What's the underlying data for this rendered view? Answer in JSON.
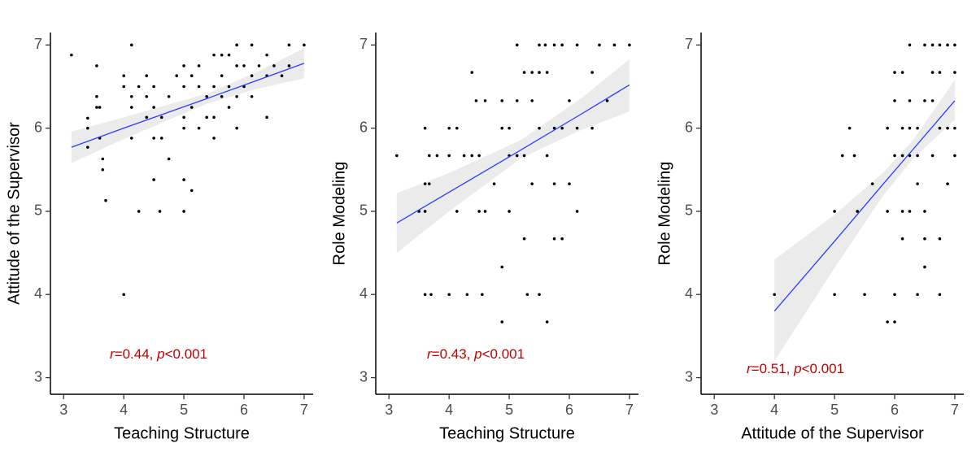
{
  "chart_data": [
    {
      "type": "scatter",
      "x_label": "Teaching Structure",
      "y_label": "Attitude of the Supervisor",
      "xlim": [
        2.78,
        7.15
      ],
      "ylim": [
        2.8,
        7.15
      ],
      "xticks": [
        3,
        4,
        5,
        6,
        7
      ],
      "yticks": [
        3,
        4,
        5,
        6,
        7
      ],
      "point_color": "#000000",
      "line_color": "#2b3cff",
      "band_color": "#ebebeb",
      "annotation": [
        "r",
        "=0.44, ",
        "p",
        "<0.001"
      ],
      "annotation_color": "#c00000",
      "x": [
        3.13,
        3.4,
        3.4,
        3.4,
        3.55,
        3.55,
        3.55,
        3.6,
        3.6,
        3.65,
        3.65,
        3.7,
        4,
        4,
        4,
        4.13,
        4.13,
        4.13,
        4.13,
        4.25,
        4.25,
        4.38,
        4.38,
        4.38,
        4.5,
        4.5,
        4.5,
        4.5,
        4.63,
        4.63,
        4.6,
        4.75,
        4.75,
        4.88,
        5,
        5,
        5,
        5,
        5,
        5,
        5.13,
        5.13,
        5.13,
        5.25,
        5.25,
        5.25,
        5.38,
        5.38,
        5.5,
        5.5,
        5.5,
        5.5,
        5.63,
        5.63,
        5.63,
        5.75,
        5.75,
        5.75,
        5.88,
        5.88,
        5.88,
        5.88,
        6,
        6,
        6.13,
        6.13,
        6.13,
        6.25,
        6.38,
        6.38,
        6.38,
        6.5,
        6.63,
        6.75,
        6.75,
        7
      ],
      "y": [
        6.88,
        6,
        5.77,
        6.12,
        6.75,
        6.38,
        6.25,
        6.25,
        5.88,
        5.63,
        5.5,
        5.13,
        4,
        6.63,
        6.5,
        7,
        6.38,
        6.25,
        5.88,
        5,
        6.5,
        6.63,
        6.38,
        6.13,
        5.38,
        6.5,
        5.88,
        6.25,
        6.13,
        5.88,
        5,
        5.63,
        6.38,
        6.63,
        6.75,
        6.5,
        6.13,
        6,
        5.38,
        5,
        5.25,
        6.63,
        6.25,
        6.75,
        6.5,
        6,
        6.38,
        6.13,
        6.88,
        6.5,
        6.13,
        5.88,
        6.88,
        6.63,
        6.38,
        6.88,
        6.5,
        6.25,
        7,
        6.75,
        6.38,
        6,
        6.75,
        6.5,
        7,
        6.63,
        6.38,
        6.75,
        6.88,
        6.63,
        6.13,
        6.75,
        6.63,
        7,
        6.75,
        7
      ],
      "fit": {
        "x": [
          3.13,
          4,
          5.4,
          6.2,
          7
        ],
        "y": [
          5.77,
          6.0,
          6.36,
          6.57,
          6.78
        ],
        "lower": [
          5.58,
          5.87,
          6.3,
          6.47,
          6.6
        ],
        "upper": [
          5.96,
          6.13,
          6.42,
          6.67,
          6.96
        ]
      }
    },
    {
      "type": "scatter",
      "x_label": "Teaching Structure",
      "y_label": "Role Modeling",
      "xlim": [
        2.78,
        7.15
      ],
      "ylim": [
        2.8,
        7.15
      ],
      "xticks": [
        3,
        4,
        5,
        6,
        7
      ],
      "yticks": [
        3,
        4,
        5,
        6,
        7
      ],
      "point_color": "#000000",
      "line_color": "#2b3cff",
      "band_color": "#ebebeb",
      "annotation": [
        "r",
        "=0.43, ",
        "p",
        "<0.001"
      ],
      "annotation_color": "#c00000",
      "x": [
        3.13,
        3.5,
        3.6,
        3.6,
        3.6,
        3.6,
        3.67,
        3.67,
        3.7,
        3.8,
        4,
        4,
        4,
        4.13,
        4.13,
        4.25,
        4.3,
        4.38,
        4.38,
        4.45,
        4.5,
        4.5,
        4.55,
        4.6,
        4.6,
        4.75,
        4.88,
        4.88,
        4.88,
        4.88,
        5,
        5,
        5,
        5.13,
        5.13,
        5.13,
        5.25,
        5.25,
        5.25,
        5.3,
        5.38,
        5.38,
        5.38,
        5.5,
        5.5,
        5.5,
        5.5,
        5.6,
        5.63,
        5.63,
        5.63,
        5.75,
        5.75,
        5.75,
        5.75,
        5.88,
        5.88,
        5.88,
        6,
        6,
        6.13,
        6.13,
        6.13,
        6.38,
        6.38,
        6.5,
        6.63,
        6.75,
        7
      ],
      "y": [
        5.67,
        5,
        6,
        5.33,
        5,
        4,
        5.67,
        5.33,
        4,
        5.67,
        6,
        4,
        5.67,
        6,
        5,
        5.67,
        4,
        6.67,
        5.67,
        6.33,
        5.67,
        5,
        4,
        6.33,
        5,
        5.33,
        6.33,
        6,
        4.33,
        3.67,
        6,
        5.67,
        5,
        7,
        6.33,
        5.67,
        6.67,
        5.67,
        4.67,
        4,
        6.67,
        6.33,
        5.33,
        7,
        6.67,
        6,
        4,
        7,
        6.67,
        5.67,
        3.67,
        7,
        6,
        5.33,
        4.67,
        7,
        6,
        4.67,
        6.33,
        5.33,
        6,
        5,
        7,
        6.67,
        6,
        7,
        6.33,
        7,
        7
      ],
      "fit": {
        "x": [
          3.13,
          4,
          5.2,
          6.2,
          7
        ],
        "y": [
          4.86,
          5.23,
          5.74,
          6.17,
          6.52
        ],
        "lower": [
          4.5,
          5.0,
          5.64,
          5.98,
          6.2
        ],
        "upper": [
          5.22,
          5.46,
          5.86,
          6.36,
          6.83
        ]
      }
    },
    {
      "type": "scatter",
      "x_label": "Attitude of the Supervisor",
      "y_label": "Role Modeling",
      "xlim": [
        2.78,
        7.15
      ],
      "ylim": [
        2.8,
        7.15
      ],
      "xticks": [
        3,
        4,
        5,
        6,
        7
      ],
      "yticks": [
        3,
        4,
        5,
        6,
        7
      ],
      "point_color": "#000000",
      "line_color": "#2b3cff",
      "band_color": "#ebebeb",
      "annotation": [
        "r",
        "=0.51, ",
        "p",
        "<0.001"
      ],
      "annotation_color": "#c00000",
      "x": [
        4,
        5,
        5,
        5.13,
        5.25,
        5.33,
        5.38,
        5.5,
        5.63,
        5.88,
        5.88,
        5.88,
        6,
        6,
        6,
        6,
        6,
        6.13,
        6.13,
        6.13,
        6.13,
        6.25,
        6.25,
        6.25,
        6.25,
        6.38,
        6.38,
        6.38,
        6.38,
        6.5,
        6.5,
        6.5,
        6.5,
        6.5,
        6.63,
        6.63,
        6.63,
        6.63,
        6.75,
        6.75,
        6.75,
        6.75,
        6.75,
        6.88,
        6.88,
        6.88,
        7,
        7,
        7,
        7,
        6.25,
        6.13
      ],
      "y": [
        4,
        5,
        4,
        5.67,
        6,
        5.67,
        5,
        4,
        5.33,
        3.67,
        6,
        5,
        6.67,
        6.33,
        5.67,
        4,
        3.67,
        6.67,
        6,
        5,
        4.67,
        7,
        6.33,
        5.67,
        5,
        6,
        5.67,
        5.33,
        4,
        7,
        6.33,
        5,
        4.67,
        4.33,
        7,
        6.67,
        6.33,
        5.67,
        7,
        6.67,
        6,
        4.67,
        4,
        7,
        6,
        5.33,
        7,
        6.67,
        6,
        5.67,
        6,
        5.67
      ],
      "fit": {
        "x": [
          4,
          5,
          5.8,
          6.3,
          7
        ],
        "y": [
          3.8,
          4.64,
          5.32,
          5.74,
          6.33
        ],
        "lower": [
          3.2,
          4.32,
          5.18,
          5.63,
          6.1
        ],
        "upper": [
          4.42,
          4.96,
          5.46,
          5.85,
          6.58
        ]
      }
    }
  ]
}
